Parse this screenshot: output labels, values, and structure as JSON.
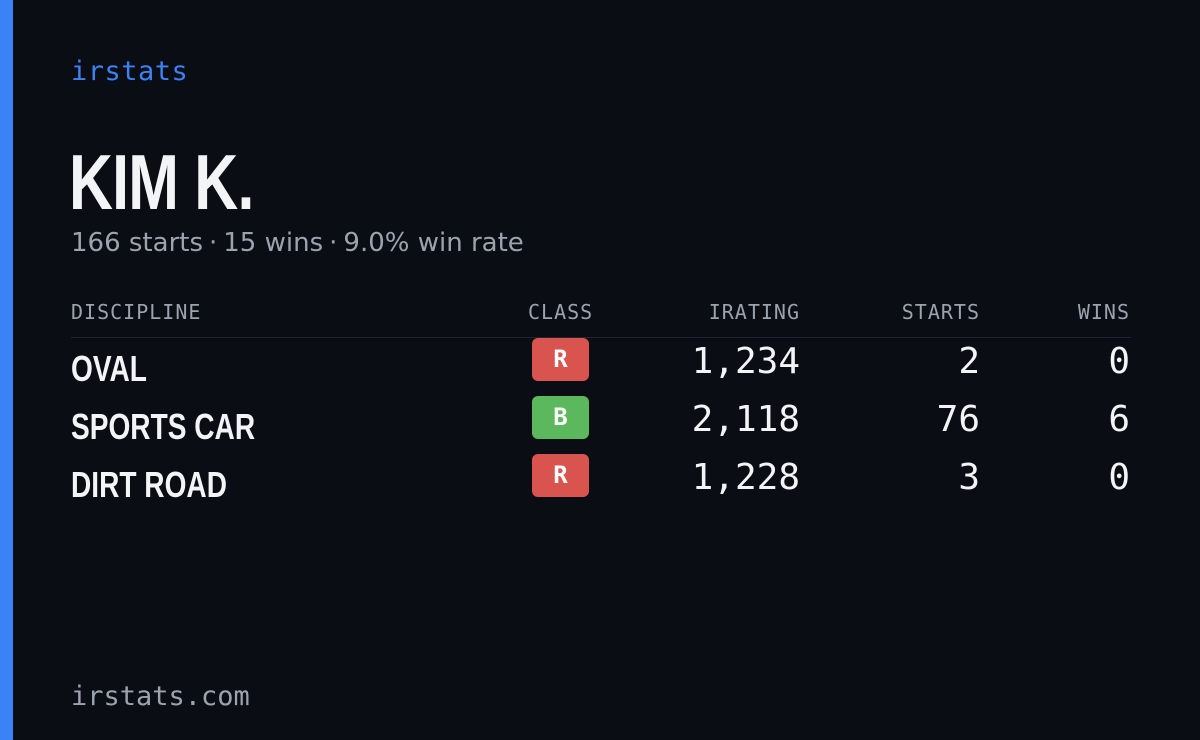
{
  "brand": "irstats",
  "driver": {
    "name": "KIM K.",
    "starts_text": "166 starts",
    "wins_text": "15 wins",
    "winrate_text": "9.0% win rate",
    "separator": "·"
  },
  "table": {
    "headers": {
      "discipline": "DISCIPLINE",
      "class": "CLASS",
      "irating": "IRATING",
      "starts": "STARTS",
      "wins": "WINS"
    },
    "rows": [
      {
        "discipline": "OVAL",
        "class": "R",
        "class_color": "#d9534f",
        "irating": "1,234",
        "starts": "2",
        "wins": "0"
      },
      {
        "discipline": "SPORTS CAR",
        "class": "B",
        "class_color": "#5cb85c",
        "irating": "2,118",
        "starts": "76",
        "wins": "6"
      },
      {
        "discipline": "DIRT ROAD",
        "class": "R",
        "class_color": "#d9534f",
        "irating": "1,228",
        "starts": "3",
        "wins": "0"
      }
    ]
  },
  "footer": "irstats.com",
  "colors": {
    "accent": "#3b82f6",
    "background": "#0a0d14",
    "text": "#f3f4f6",
    "muted": "#9ca3af"
  }
}
